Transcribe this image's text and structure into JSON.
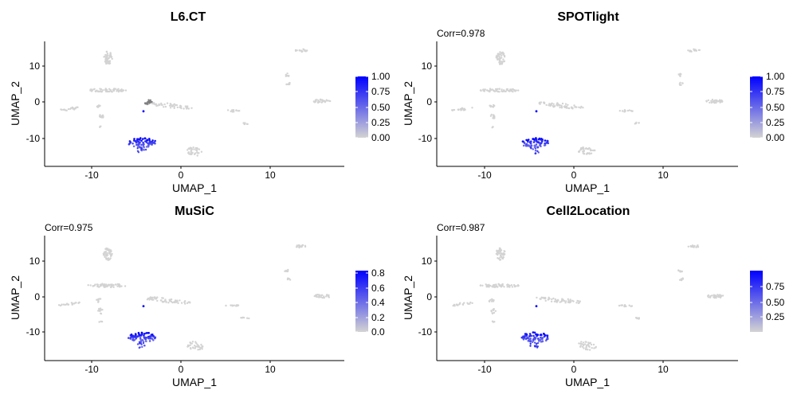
{
  "chart_data": [
    {
      "type": "scatter",
      "title": "L6.CT",
      "subtitle": "",
      "xlabel": "UMAP_1",
      "ylabel": "UMAP_2",
      "xlim": [
        -15,
        18.5
      ],
      "ylim": [
        -17.5,
        17
      ],
      "xticks": [
        "-10",
        "0",
        "10"
      ],
      "yticks": [
        "10",
        "0",
        "-10"
      ],
      "grid": false,
      "legend": {
        "position": "right",
        "ticks": [
          "1.00",
          "0.75",
          "0.50",
          "0.25",
          "0.00"
        ],
        "max": 1.0
      },
      "colors": {
        "low": "#d3d3d3",
        "high": "#0000ff",
        "na": "#7f7f7f"
      }
    },
    {
      "type": "scatter",
      "title": "SPOTlight",
      "subtitle": "Corr=0.978",
      "xlabel": "UMAP_1",
      "ylabel": "UMAP_2",
      "xlim": [
        -15,
        18.5
      ],
      "ylim": [
        -17.5,
        17
      ],
      "xticks": [
        "-10",
        "0",
        "10"
      ],
      "yticks": [
        "10",
        "0",
        "-10"
      ],
      "grid": false,
      "legend": {
        "position": "right",
        "ticks": [
          "1.00",
          "0.75",
          "0.50",
          "0.25",
          "0.00"
        ],
        "max": 1.0
      },
      "colors": {
        "low": "#d3d3d3",
        "high": "#0000ff",
        "na": "#7f7f7f"
      }
    },
    {
      "type": "scatter",
      "title": "MuSiC",
      "subtitle": "Corr=0.975",
      "xlabel": "UMAP_1",
      "ylabel": "UMAP_2",
      "xlim": [
        -15,
        18.5
      ],
      "ylim": [
        -17.5,
        17
      ],
      "xticks": [
        "-10",
        "0",
        "10"
      ],
      "yticks": [
        "10",
        "0",
        "-10"
      ],
      "grid": false,
      "legend": {
        "position": "right",
        "ticks": [
          "0.8",
          "0.6",
          "0.4",
          "0.2",
          "0.0"
        ],
        "max": 0.85
      },
      "colors": {
        "low": "#d3d3d3",
        "high": "#0000ff",
        "na": "#7f7f7f"
      }
    },
    {
      "type": "scatter",
      "title": "Cell2Location",
      "subtitle": "Corr=0.987",
      "xlabel": "UMAP_1",
      "ylabel": "UMAP_2",
      "xlim": [
        -15,
        18.5
      ],
      "ylim": [
        -17.5,
        17
      ],
      "xticks": [
        "-10",
        "0",
        "10"
      ],
      "yticks": [
        "10",
        "0",
        "-10"
      ],
      "grid": false,
      "legend": {
        "position": "right",
        "ticks": [
          "0.75",
          "0.50",
          "0.25"
        ],
        "max": 0.95
      },
      "colors": {
        "low": "#d3d3d3",
        "high": "#0000ff",
        "na": "#7f7f7f"
      }
    }
  ]
}
